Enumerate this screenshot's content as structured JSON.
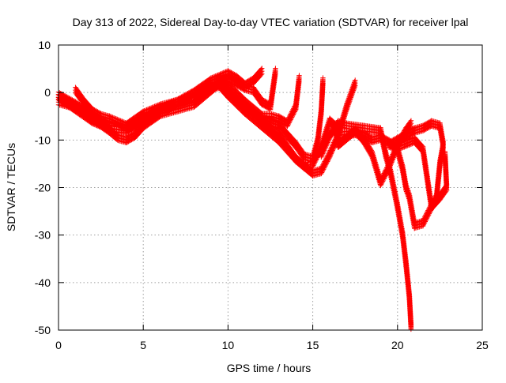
{
  "chart_data": {
    "type": "scatter",
    "title": "Day 313 of 2022, Sidereal Day-to-day VTEC variation (SDTVAR) for receiver lpal",
    "xlabel": "GPS time / hours",
    "ylabel": "SDTVAR / TECUs",
    "xlim": [
      0,
      25
    ],
    "ylim": [
      -50,
      10
    ],
    "xticks": [
      0,
      5,
      10,
      15,
      20,
      25
    ],
    "yticks": [
      -50,
      -40,
      -30,
      -20,
      -10,
      0,
      10
    ],
    "grid": true,
    "marker": "+",
    "series_color": "#ff0000",
    "series": [
      {
        "name": "track-1",
        "points": [
          [
            0.0,
            -0.5
          ],
          [
            1.0,
            -2.5
          ],
          [
            2.0,
            -5.0
          ],
          [
            3.0,
            -7.0
          ],
          [
            4.0,
            -7.5
          ],
          [
            5.0,
            -5.5
          ],
          [
            6.0,
            -3.5
          ],
          [
            7.0,
            -2.0
          ],
          [
            8.0,
            -1.0
          ],
          [
            9.0,
            2.0
          ],
          [
            9.5,
            2.5
          ],
          [
            10.0,
            0.0
          ],
          [
            11.0,
            -3.0
          ],
          [
            12.0,
            -5.5
          ],
          [
            13.0,
            -7.0
          ],
          [
            14.0,
            -11.0
          ],
          [
            14.5,
            -13.5
          ],
          [
            15.0,
            -14.0
          ],
          [
            15.3,
            -10.0
          ],
          [
            15.5,
            -4.0
          ],
          [
            15.6,
            2.5
          ]
        ]
      },
      {
        "name": "track-2",
        "points": [
          [
            0.0,
            -1.0
          ],
          [
            1.0,
            -3.5
          ],
          [
            2.0,
            -6.0
          ],
          [
            3.0,
            -7.5
          ],
          [
            4.0,
            -8.0
          ],
          [
            5.0,
            -6.0
          ],
          [
            6.0,
            -4.0
          ],
          [
            7.0,
            -2.5
          ],
          [
            8.0,
            -1.5
          ],
          [
            9.0,
            1.0
          ],
          [
            9.5,
            1.5
          ],
          [
            10.0,
            -0.5
          ],
          [
            11.0,
            -4.0
          ],
          [
            12.0,
            -7.0
          ],
          [
            13.0,
            -10.0
          ],
          [
            14.0,
            -14.0
          ],
          [
            15.0,
            -17.0
          ],
          [
            15.5,
            -16.5
          ],
          [
            16.0,
            -13.0
          ],
          [
            16.5,
            -9.0
          ],
          [
            17.0,
            -3.0
          ],
          [
            17.5,
            2.0
          ]
        ]
      },
      {
        "name": "track-3",
        "points": [
          [
            0.0,
            -2.0
          ],
          [
            1.0,
            -3.0
          ],
          [
            2.0,
            -5.5
          ],
          [
            3.0,
            -8.0
          ],
          [
            3.5,
            -9.5
          ],
          [
            4.0,
            -10.0
          ],
          [
            4.5,
            -9.0
          ],
          [
            5.0,
            -7.0
          ],
          [
            6.0,
            -4.5
          ],
          [
            7.0,
            -3.5
          ],
          [
            8.0,
            -2.5
          ],
          [
            9.0,
            0.5
          ],
          [
            9.5,
            2.0
          ],
          [
            10.0,
            3.0
          ],
          [
            10.5,
            2.0
          ],
          [
            11.0,
            1.0
          ],
          [
            11.5,
            0.5
          ],
          [
            12.0,
            -2.0
          ],
          [
            12.5,
            -3.0
          ],
          [
            12.8,
            4.5
          ]
        ]
      },
      {
        "name": "track-4",
        "points": [
          [
            1.0,
            0.5
          ],
          [
            1.5,
            -2.0
          ],
          [
            2.0,
            -4.0
          ],
          [
            2.5,
            -5.0
          ],
          [
            3.0,
            -5.5
          ],
          [
            4.0,
            -7.0
          ],
          [
            5.0,
            -4.5
          ],
          [
            6.0,
            -3.0
          ],
          [
            7.0,
            -2.0
          ],
          [
            8.0,
            0.0
          ],
          [
            9.0,
            2.5
          ],
          [
            10.0,
            4.0
          ],
          [
            10.5,
            3.0
          ],
          [
            11.0,
            1.5
          ],
          [
            11.5,
            2.5
          ],
          [
            12.0,
            4.5
          ]
        ]
      },
      {
        "name": "track-5",
        "points": [
          [
            9.5,
            3.0
          ],
          [
            10.0,
            1.5
          ],
          [
            11.0,
            -2.0
          ],
          [
            12.0,
            -5.0
          ],
          [
            12.5,
            -5.0
          ],
          [
            13.0,
            -5.5
          ],
          [
            13.5,
            -6.5
          ],
          [
            14.0,
            -3.0
          ],
          [
            14.2,
            3.0
          ]
        ]
      },
      {
        "name": "track-6",
        "points": [
          [
            12.0,
            -6.0
          ],
          [
            13.0,
            -9.0
          ],
          [
            14.0,
            -14.0
          ],
          [
            14.5,
            -15.5
          ],
          [
            15.0,
            -15.0
          ],
          [
            15.5,
            -11.5
          ],
          [
            16.0,
            -6.0
          ],
          [
            16.3,
            -7.0
          ],
          [
            16.5,
            -11.0
          ],
          [
            17.0,
            -9.5
          ],
          [
            17.5,
            -8.0
          ],
          [
            18.0,
            -10.0
          ],
          [
            18.5,
            -13.0
          ],
          [
            19.0,
            -19.0
          ],
          [
            19.5,
            -15.5
          ],
          [
            20.0,
            -11.0
          ],
          [
            20.5,
            -8.0
          ],
          [
            20.8,
            -6.5
          ]
        ]
      },
      {
        "name": "track-7",
        "points": [
          [
            15.5,
            -13.0
          ],
          [
            16.0,
            -9.0
          ],
          [
            16.5,
            -6.5
          ],
          [
            17.0,
            -7.0
          ],
          [
            18.0,
            -7.5
          ],
          [
            19.0,
            -8.0
          ],
          [
            19.3,
            -13.0
          ],
          [
            19.6,
            -17.0
          ],
          [
            20.0,
            -24.0
          ],
          [
            20.3,
            -30.0
          ],
          [
            20.5,
            -36.0
          ],
          [
            20.7,
            -43.0
          ],
          [
            20.8,
            -49.5
          ]
        ]
      },
      {
        "name": "track-8",
        "points": [
          [
            16.5,
            -9.0
          ],
          [
            17.5,
            -8.5
          ],
          [
            18.0,
            -9.0
          ],
          [
            18.5,
            -10.0
          ],
          [
            19.0,
            -9.5
          ],
          [
            19.5,
            -10.5
          ],
          [
            20.0,
            -12.0
          ],
          [
            20.3,
            -16.0
          ],
          [
            20.5,
            -20.0
          ],
          [
            20.7,
            -22.0
          ],
          [
            21.0,
            -28.0
          ],
          [
            21.5,
            -27.5
          ],
          [
            22.0,
            -24.0
          ],
          [
            22.5,
            -22.0
          ],
          [
            22.9,
            -20.0
          ],
          [
            22.8,
            -13.0
          ]
        ]
      },
      {
        "name": "track-9",
        "points": [
          [
            19.5,
            -11.0
          ],
          [
            20.0,
            -11.5
          ],
          [
            21.0,
            -10.0
          ],
          [
            21.5,
            -12.0
          ],
          [
            22.0,
            -24.0
          ],
          [
            22.3,
            -22.0
          ],
          [
            22.5,
            -15.0
          ],
          [
            22.7,
            -11.0
          ],
          [
            22.5,
            -7.0
          ],
          [
            22.0,
            -6.5
          ],
          [
            21.5,
            -7.5
          ],
          [
            21.0,
            -8.0
          ],
          [
            20.5,
            -9.0
          ],
          [
            20.0,
            -10.0
          ],
          [
            19.5,
            -11.0
          ]
        ]
      }
    ]
  }
}
